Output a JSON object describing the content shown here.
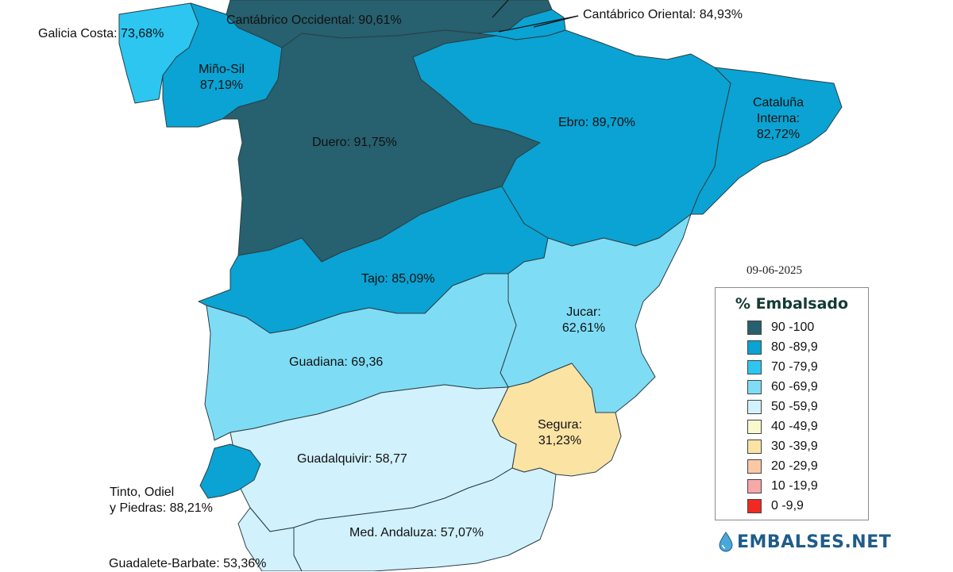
{
  "map": {
    "date": "09-06-2025",
    "regions": [
      {
        "id": "cantabrico-occidental",
        "label": "Cantábrico Occidental: 90,61%",
        "value": 90.61,
        "color": "#27606f"
      },
      {
        "id": "cantabrico-oriental",
        "label": "Cantábrico Oriental: 84,93%",
        "value": 84.93,
        "color": "#0aa3d3"
      },
      {
        "id": "galicia-costa",
        "label": "Galicia Costa: 73,68%",
        "value": 73.68,
        "color": "#2cc6f1"
      },
      {
        "id": "mino-sil",
        "label": "Miño-Sil\n87,19%",
        "value": 87.19,
        "color": "#0aa3d3"
      },
      {
        "id": "duero",
        "label": "Duero: 91,75%",
        "value": 91.75,
        "color": "#27606f"
      },
      {
        "id": "ebro",
        "label": "Ebro: 89,70%",
        "value": 89.7,
        "color": "#0aa3d3"
      },
      {
        "id": "cataluna-interna",
        "label": "Cataluña\nInterna:\n82,72%",
        "value": 82.72,
        "color": "#0aa3d3"
      },
      {
        "id": "tajo",
        "label": "Tajo: 85,09%",
        "value": 85.09,
        "color": "#0aa3d3"
      },
      {
        "id": "jucar",
        "label": "Jucar:\n62,61%",
        "value": 62.61,
        "color": "#7fdcf5"
      },
      {
        "id": "guadiana",
        "label": "Guadiana: 69,36",
        "value": 69.36,
        "color": "#7fdcf5"
      },
      {
        "id": "segura",
        "label": "Segura:\n31,23%",
        "value": 31.23,
        "color": "#fbe3a4"
      },
      {
        "id": "guadalquivir",
        "label": "Guadalquivir: 58,77",
        "value": 58.77,
        "color": "#d1f1fc"
      },
      {
        "id": "tinto-odiel-piedras",
        "label": "Tinto, Odiel\ny Piedras: 88,21%",
        "value": 88.21,
        "color": "#0aa3d3"
      },
      {
        "id": "med-andaluza",
        "label": "Med. Andaluza: 57,07%",
        "value": 57.07,
        "color": "#d1f1fc"
      },
      {
        "id": "guadalete-barbate",
        "label": "Guadalete-Barbate: 53,36%",
        "value": 53.36,
        "color": "#d1f1fc"
      }
    ]
  },
  "legend": {
    "title": "% Embalsado",
    "items": [
      {
        "label": "90 -100",
        "color": "#27606f"
      },
      {
        "label": "80 -89,9",
        "color": "#0aa3d3"
      },
      {
        "label": "70 -79,9",
        "color": "#2cc6f1"
      },
      {
        "label": "60 -69,9",
        "color": "#7fdcf5"
      },
      {
        "label": "50 -59,9",
        "color": "#d1f1fc"
      },
      {
        "label": "40 -49,9",
        "color": "#f8f9cf"
      },
      {
        "label": "30 -39,9",
        "color": "#fbe3a4"
      },
      {
        "label": "20 -29,9",
        "color": "#fbc8a6"
      },
      {
        "label": "10 -19,9",
        "color": "#f7a8a8"
      },
      {
        "label": "0 -9,9",
        "color": "#f02a22"
      }
    ]
  },
  "brand": {
    "name": "EMBALSES.NET",
    "icon": "water-drop-icon",
    "color": "#1f5c8a"
  }
}
